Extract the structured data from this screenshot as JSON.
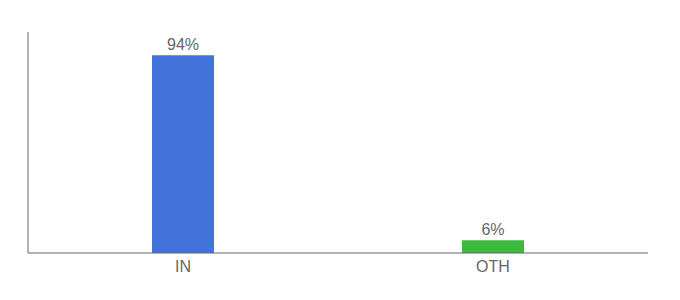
{
  "chart_data": {
    "type": "bar",
    "categories": [
      "IN",
      "OTH"
    ],
    "values": [
      94,
      6
    ],
    "value_labels": [
      "94%",
      "6%"
    ],
    "colors": [
      "#4472db",
      "#3dbb3d"
    ],
    "ylim": [
      0,
      105
    ],
    "data_labels": true,
    "tick_labels": "x",
    "grid": false
  }
}
